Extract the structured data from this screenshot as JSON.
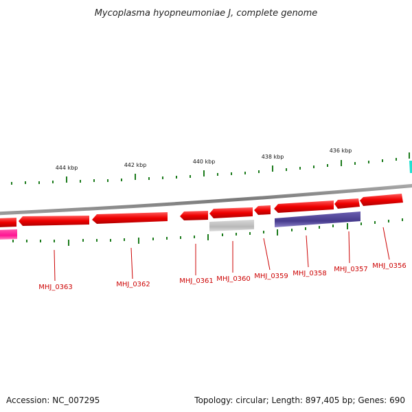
{
  "title": "Mycoplasma hyopneumoniae J, complete genome",
  "footer": {
    "accession": "Accession: NC_007295",
    "summary": "Topology: circular; Length: 897,405 bp; Genes: 690"
  },
  "colors": {
    "background": "#ffffff",
    "backbone": "#888888",
    "tick": "#1a7a1a",
    "gene_forward": "#ee0000",
    "gene_label": "#cc0000",
    "label_line": "#cc0000",
    "gene_gray": "#b8b8b8",
    "gene_purple": "#4a3f8f",
    "gene_pink": "#ff1493",
    "gene_cyan": "#20e0d0"
  },
  "ticks": {
    "labels": [
      "444 kbp",
      "442 kbp",
      "440 kbp",
      "438 kbp",
      "436 kbp"
    ]
  },
  "genes": [
    {
      "name": "MHJ_0363",
      "label": "MHJ_0363"
    },
    {
      "name": "MHJ_0362",
      "label": "MHJ_0362"
    },
    {
      "name": "MHJ_0361",
      "label": "MHJ_0361"
    },
    {
      "name": "MHJ_0360",
      "label": "MHJ_0360"
    },
    {
      "name": "MHJ_0359",
      "label": "MHJ_0359"
    },
    {
      "name": "MHJ_0358",
      "label": "MHJ_0358"
    },
    {
      "name": "MHJ_0357",
      "label": "MHJ_0357"
    },
    {
      "name": "MHJ_0356",
      "label": "MHJ_0356"
    }
  ]
}
